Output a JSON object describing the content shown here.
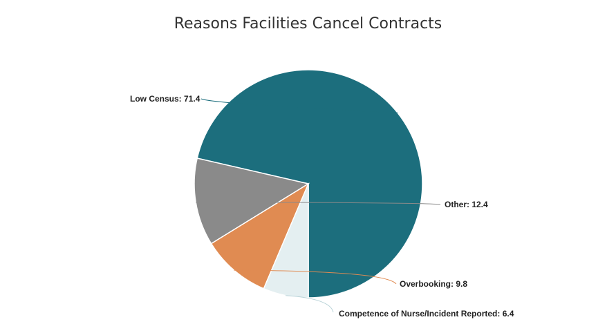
{
  "chart_data": {
    "type": "pie",
    "title": "Reasons Facilities Cancel Contracts",
    "slices": [
      {
        "label": "Low Census",
        "value": 71.4,
        "color": "#1c6e7d",
        "display": "Low Census: 71.4"
      },
      {
        "label": "Other",
        "value": 12.4,
        "color": "#8a8a8a",
        "display": "Other: 12.4"
      },
      {
        "label": "Overbooking",
        "value": 9.8,
        "color": "#e08b52",
        "display": "Overbooking: 9.8"
      },
      {
        "label": "Competence of Nurse/Incident Reported",
        "value": 6.4,
        "color": "#e4eff1",
        "display": "Competence of Nurse/Incident Reported: 6.4"
      }
    ],
    "start_angle_deg": 180,
    "direction": "counterclockwise"
  }
}
